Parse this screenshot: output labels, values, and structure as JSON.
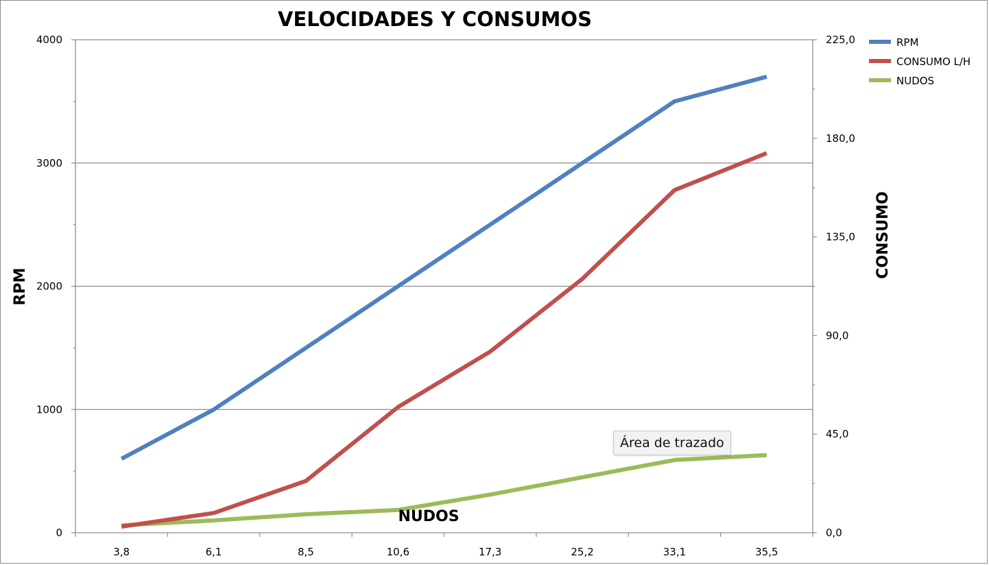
{
  "chart_data": {
    "type": "line",
    "title": "VELOCIDADES Y CONSUMOS",
    "xlabel": "NUDOS",
    "ylabel": "RPM",
    "y2label": "CONSUMO",
    "categories": [
      "3,8",
      "6,1",
      "8,5",
      "10,6",
      "17,3",
      "25,2",
      "33,1",
      "35,5"
    ],
    "ylim": [
      0,
      4000
    ],
    "y_ticks": [
      "0",
      "1000",
      "2000",
      "3000",
      "4000"
    ],
    "y_tick_values": [
      0,
      1000,
      2000,
      3000,
      4000
    ],
    "y2lim": [
      0,
      225
    ],
    "y2_ticks": [
      "0,0",
      "45,0",
      "90,0",
      "135,0",
      "180,0",
      "225,0"
    ],
    "y2_tick_values": [
      0,
      45,
      90,
      135,
      180,
      225
    ],
    "grid": "horizontal major gridlines on primary axis",
    "legend_position": "top-right",
    "series": [
      {
        "name": "RPM",
        "axis": "primary",
        "color": "#4f81bd",
        "values": [
          600,
          1000,
          1500,
          2000,
          2500,
          3000,
          3500,
          3700
        ]
      },
      {
        "name": "CONSUMO L/H",
        "axis": "primary",
        "color": "#c0504d",
        "values": [
          50,
          160,
          420,
          1020,
          1470,
          2060,
          2780,
          3080
        ]
      },
      {
        "name": "NUDOS",
        "axis": "primary",
        "color": "#9bbb59",
        "values": [
          60,
          100,
          150,
          185,
          310,
          450,
          590,
          630
        ]
      }
    ]
  },
  "tooltip": {
    "text": "Área de trazado"
  }
}
